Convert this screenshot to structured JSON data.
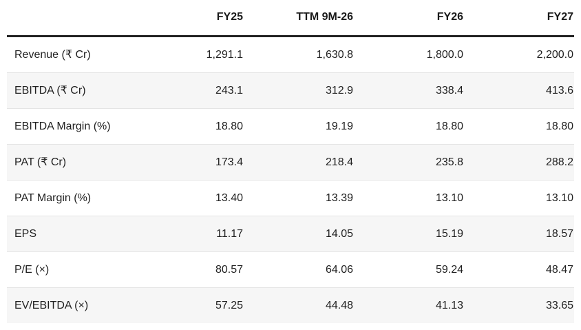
{
  "colors": {
    "header_border": "#222222",
    "row_divider": "#e4e4e4",
    "stripe_background": "#f6f6f6",
    "text": "#212121",
    "header_text": "#1a1a1a"
  },
  "table": {
    "columns": [
      "",
      "FY25",
      "TTM 9M-26",
      "FY26",
      "FY27"
    ],
    "rows": [
      {
        "label": "Revenue (₹ Cr)",
        "values": [
          "1,291.1",
          "1,630.8",
          "1,800.0",
          "2,200.0"
        ]
      },
      {
        "label": "EBITDA (₹ Cr)",
        "values": [
          "243.1",
          "312.9",
          "338.4",
          "413.6"
        ]
      },
      {
        "label": "EBITDA Margin (%)",
        "values": [
          "18.80",
          "19.19",
          "18.80",
          "18.80"
        ]
      },
      {
        "label": "PAT (₹ Cr)",
        "values": [
          "173.4",
          "218.4",
          "235.8",
          "288.2"
        ]
      },
      {
        "label": "PAT Margin (%)",
        "values": [
          "13.40",
          "13.39",
          "13.10",
          "13.10"
        ]
      },
      {
        "label": "EPS",
        "values": [
          "11.17",
          "14.05",
          "15.19",
          "18.57"
        ]
      },
      {
        "label": "P/E (×)",
        "values": [
          "80.57",
          "64.06",
          "59.24",
          "48.47"
        ]
      },
      {
        "label": "EV/EBITDA (×)",
        "values": [
          "57.25",
          "44.48",
          "41.13",
          "33.65"
        ]
      }
    ]
  },
  "chart_data": {
    "type": "table",
    "title": "",
    "columns": [
      "FY25",
      "TTM 9M-26",
      "FY26",
      "FY27"
    ],
    "rows": [
      {
        "metric": "Revenue (₹ Cr)",
        "values": [
          1291.1,
          1630.8,
          1800.0,
          2200.0
        ]
      },
      {
        "metric": "EBITDA (₹ Cr)",
        "values": [
          243.1,
          312.9,
          338.4,
          413.6
        ]
      },
      {
        "metric": "EBITDA Margin (%)",
        "values": [
          18.8,
          19.19,
          18.8,
          18.8
        ]
      },
      {
        "metric": "PAT (₹ Cr)",
        "values": [
          173.4,
          218.4,
          235.8,
          288.2
        ]
      },
      {
        "metric": "PAT Margin (%)",
        "values": [
          13.4,
          13.39,
          13.1,
          13.1
        ]
      },
      {
        "metric": "EPS",
        "values": [
          11.17,
          14.05,
          15.19,
          18.57
        ]
      },
      {
        "metric": "P/E (×)",
        "values": [
          80.57,
          64.06,
          59.24,
          48.47
        ]
      },
      {
        "metric": "EV/EBITDA (×)",
        "values": [
          57.25,
          44.48,
          41.13,
          33.65
        ]
      }
    ],
    "layout": {
      "striped_rows": true,
      "header_rule": "thick-black",
      "numeric_alignment": "right"
    }
  }
}
